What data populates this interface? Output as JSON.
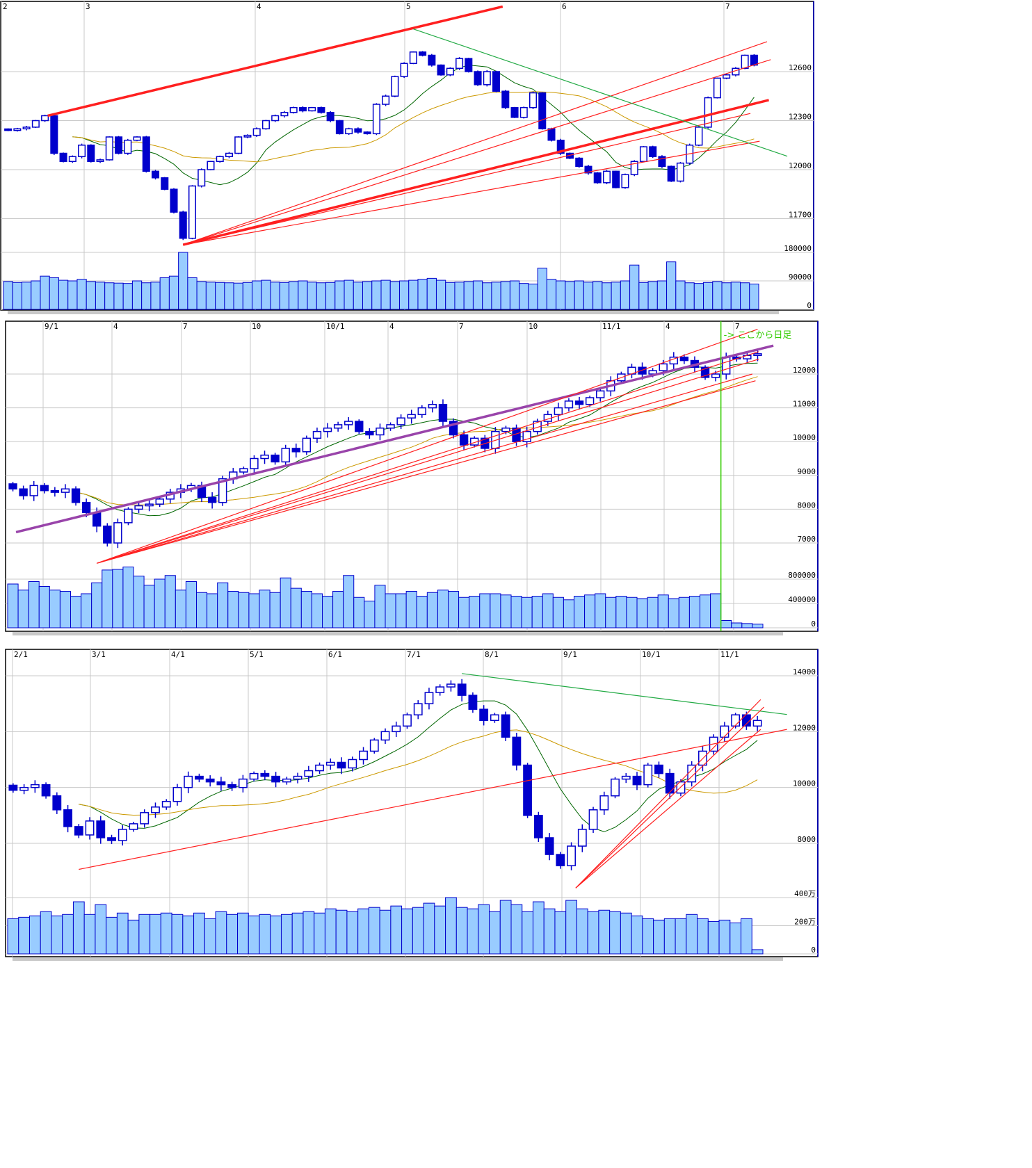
{
  "colors": {
    "candle": "#0000cc",
    "volume_fill": "#99ccff",
    "grid": "#c8c8c8",
    "trend_red": "#ff2020",
    "trend_green": "#22aa44",
    "trend_purple": "#9944aa",
    "ma_short": "#006600",
    "ma_long": "#cc9900",
    "note": "#33cc00"
  },
  "chart_data": [
    {
      "type": "candlestick",
      "x_tick_labels": [
        "2",
        "3",
        "4",
        "5",
        "6",
        "7"
      ],
      "y_ticks": [
        12600,
        12300,
        12000,
        11700
      ],
      "volume_ticks": [
        180000,
        90000,
        0
      ],
      "grid": true,
      "close": [
        12240,
        12250,
        12260,
        12300,
        12330,
        12100,
        12050,
        12080,
        12150,
        12050,
        12060,
        12200,
        12100,
        12180,
        12200,
        11990,
        11950,
        11880,
        11740,
        11580,
        11900,
        12000,
        12050,
        12080,
        12100,
        12200,
        12210,
        12250,
        12300,
        12330,
        12350,
        12380,
        12360,
        12380,
        12350,
        12300,
        12220,
        12250,
        12230,
        12220,
        12400,
        12450,
        12570,
        12650,
        12720,
        12700,
        12640,
        12580,
        12620,
        12680,
        12600,
        12520,
        12600,
        12480,
        12380,
        12320,
        12380,
        12470,
        12250,
        12180,
        12100,
        12070,
        12020,
        11980,
        11920,
        11990,
        11890,
        11970,
        12050,
        12140,
        12080,
        12020,
        11930,
        12040,
        12150,
        12260,
        12440,
        12560,
        12580,
        12620,
        12700,
        12640
      ],
      "volume": [
        88000,
        85000,
        86000,
        90000,
        105000,
        100000,
        92000,
        90000,
        95000,
        88000,
        86000,
        84000,
        83000,
        82000,
        90000,
        84000,
        86000,
        100000,
        105000,
        180000,
        100000,
        88000,
        86000,
        85000,
        84000,
        83000,
        85000,
        90000,
        92000,
        86000,
        85000,
        88000,
        90000,
        86000,
        84000,
        85000,
        90000,
        92000,
        86000,
        88000,
        90000,
        92000,
        88000,
        90000,
        92000,
        95000,
        98000,
        92000,
        85000,
        86000,
        88000,
        90000,
        84000,
        86000,
        88000,
        90000,
        82000,
        80000,
        130000,
        95000,
        90000,
        88000,
        90000,
        86000,
        88000,
        84000,
        86000,
        90000,
        140000,
        85000,
        88000,
        90000,
        150000,
        90000,
        84000,
        82000,
        85000,
        88000,
        84000,
        86000,
        84000,
        80000
      ],
      "trendlines": [
        {
          "color": "red",
          "thick": true,
          "from": [
            4.3,
            12330
          ],
          "to": [
            53.7,
            12998
          ]
        },
        {
          "color": "red",
          "thick": true,
          "from": [
            19,
            11540
          ],
          "to": [
            82.6,
            12426
          ]
        },
        {
          "color": "red",
          "thick": false,
          "from": [
            19,
            11540
          ],
          "to": [
            82.4,
            12783
          ]
        },
        {
          "color": "red",
          "thick": false,
          "from": [
            19,
            11540
          ],
          "to": [
            82.8,
            12673
          ]
        },
        {
          "color": "red",
          "thick": false,
          "from": [
            19,
            11540
          ],
          "to": [
            80.6,
            12344
          ]
        },
        {
          "color": "red",
          "thick": false,
          "from": [
            19,
            11540
          ],
          "to": [
            81.6,
            12174
          ]
        },
        {
          "color": "green",
          "thick": false,
          "from": [
            44,
            12861
          ],
          "to": [
            84.6,
            12082
          ]
        }
      ]
    },
    {
      "type": "candlestick",
      "x_tick_labels": [
        "9/1",
        "4",
        "7",
        "10",
        "10/1",
        "4",
        "7",
        "10",
        "11/1",
        "4",
        "7"
      ],
      "y_ticks": [
        12000,
        11000,
        10000,
        9000,
        8000,
        7000
      ],
      "volume_ticks": [
        800000,
        400000,
        0
      ],
      "grid": true,
      "annotation": "-> ここから日足",
      "close": [
        8600,
        8400,
        8700,
        8550,
        8500,
        8600,
        8200,
        7900,
        7500,
        7000,
        7600,
        8000,
        8100,
        8150,
        8300,
        8500,
        8600,
        8700,
        8350,
        8200,
        8900,
        9100,
        9200,
        9500,
        9600,
        9400,
        9800,
        9700,
        10100,
        10300,
        10400,
        10500,
        10600,
        10300,
        10200,
        10400,
        10500,
        10700,
        10800,
        11000,
        11100,
        10600,
        10200,
        9900,
        10100,
        9800,
        10300,
        10400,
        10000,
        10300,
        10600,
        10800,
        11000,
        11200,
        11100,
        11300,
        11500,
        11800,
        12000,
        12200,
        12000,
        12100,
        12300,
        12500,
        12400,
        12200,
        11900,
        12000,
        12500,
        12450,
        12550,
        12600
      ],
      "volume": [
        720000,
        620000,
        760000,
        680000,
        620000,
        600000,
        520000,
        560000,
        740000,
        950000,
        960000,
        1000000,
        850000,
        700000,
        800000,
        860000,
        620000,
        760000,
        580000,
        560000,
        740000,
        600000,
        580000,
        560000,
        620000,
        580000,
        820000,
        650000,
        600000,
        560000,
        520000,
        600000,
        860000,
        500000,
        440000,
        700000,
        560000,
        560000,
        600000,
        520000,
        580000,
        620000,
        600000,
        500000,
        520000,
        560000,
        560000,
        540000,
        520000,
        500000,
        520000,
        560000,
        500000,
        460000,
        520000,
        540000,
        560000,
        500000,
        520000,
        500000,
        480000,
        500000,
        540000,
        480000,
        500000,
        520000,
        540000,
        560000,
        120000,
        80000,
        70000,
        60000
      ],
      "daily_from_index": 68,
      "trendlines": [
        {
          "color": "purple",
          "thick": true,
          "from": [
            0.3,
            7320
          ],
          "to": [
            72.5,
            12840
          ]
        },
        {
          "color": "red",
          "thick": false,
          "from": [
            8,
            6400
          ],
          "to": [
            71,
            13325
          ]
        },
        {
          "color": "red",
          "thick": false,
          "from": [
            8,
            6400
          ],
          "to": [
            71.1,
            12662
          ]
        },
        {
          "color": "red",
          "thick": false,
          "from": [
            8,
            6400
          ],
          "to": [
            71.1,
            12441
          ]
        },
        {
          "color": "red",
          "thick": false,
          "from": [
            8,
            6400
          ],
          "to": [
            70.5,
            12000
          ]
        },
        {
          "color": "red",
          "thick": false,
          "from": [
            8,
            6400
          ],
          "to": [
            70.8,
            11800
          ]
        }
      ]
    },
    {
      "type": "candlestick",
      "x_tick_labels": [
        "2/1",
        "3/1",
        "4/1",
        "5/1",
        "6/1",
        "7/1",
        "8/1",
        "9/1",
        "10/1",
        "11/1"
      ],
      "y_ticks": [
        14000,
        12000,
        10000,
        8000
      ],
      "volume_ticks": [
        "400万",
        "200万",
        "0"
      ],
      "volume_unit": "万",
      "grid": true,
      "close": [
        9900,
        10000,
        10100,
        9700,
        9200,
        8600,
        8300,
        8800,
        8200,
        8100,
        8500,
        8700,
        9100,
        9300,
        9500,
        10000,
        10400,
        10300,
        10200,
        10100,
        10000,
        10300,
        10500,
        10400,
        10200,
        10300,
        10400,
        10600,
        10800,
        10900,
        10700,
        11000,
        11300,
        11700,
        12000,
        12200,
        12600,
        13000,
        13400,
        13600,
        13700,
        13300,
        12800,
        12400,
        12600,
        11800,
        10800,
        9000,
        8200,
        7600,
        7200,
        7900,
        8500,
        9200,
        9700,
        10300,
        10400,
        10100,
        10800,
        10500,
        9800,
        10200,
        10800,
        11300,
        11800,
        12200,
        12600,
        12200,
        12400
      ],
      "volume": [
        250,
        260,
        270,
        300,
        270,
        280,
        370,
        280,
        350,
        260,
        290,
        240,
        280,
        280,
        290,
        280,
        270,
        290,
        250,
        300,
        280,
        290,
        270,
        280,
        270,
        280,
        290,
        300,
        290,
        320,
        310,
        300,
        320,
        330,
        310,
        340,
        320,
        330,
        360,
        340,
        400,
        330,
        320,
        350,
        300,
        380,
        350,
        300,
        370,
        320,
        300,
        380,
        320,
        300,
        310,
        300,
        290,
        270,
        250,
        240,
        250,
        250,
        280,
        250,
        230,
        240,
        220,
        250,
        30
      ],
      "trendlines": [
        {
          "color": "red",
          "thick": false,
          "from": [
            6,
            7067
          ],
          "to": [
            70.7,
            12080
          ]
        },
        {
          "color": "green",
          "thick": false,
          "from": [
            41,
            14080
          ],
          "to": [
            70.7,
            12613
          ]
        },
        {
          "color": "red",
          "thick": false,
          "from": [
            51.4,
            6400
          ],
          "to": [
            68.3,
            13147
          ]
        },
        {
          "color": "red",
          "thick": false,
          "from": [
            51.4,
            6400
          ],
          "to": [
            68.6,
            12880
          ]
        },
        {
          "color": "red",
          "thick": false,
          "from": [
            51.4,
            6400
          ],
          "to": [
            68.3,
            12080
          ]
        }
      ]
    }
  ]
}
